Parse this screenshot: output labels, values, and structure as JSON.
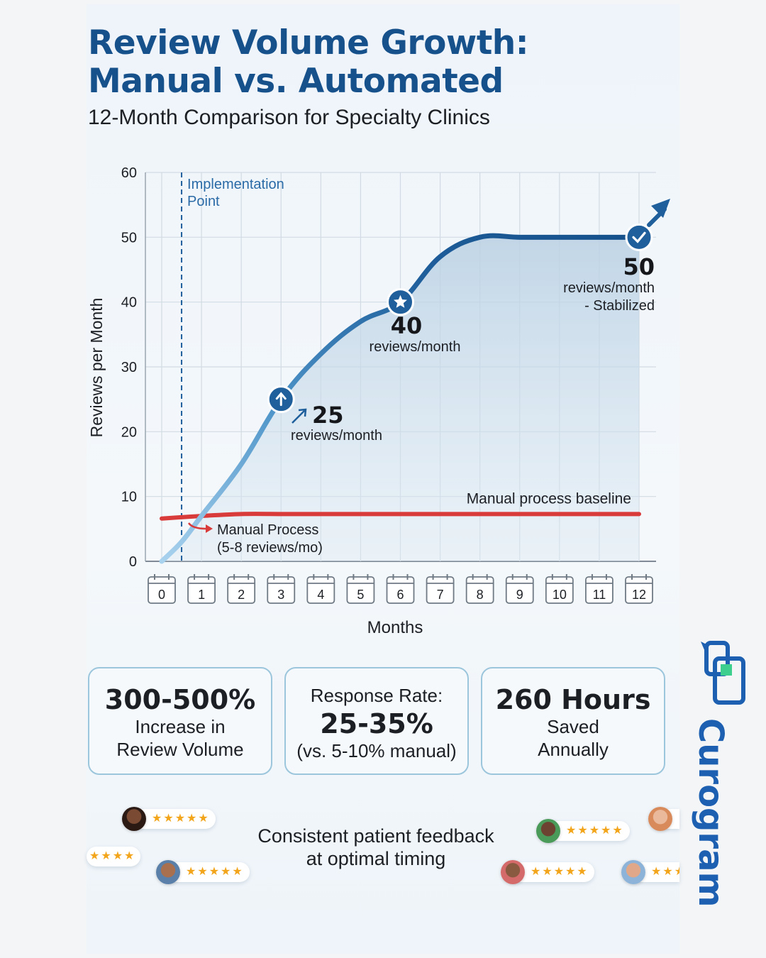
{
  "title_line1": "Review Volume Growth:",
  "title_line2": "Manual vs. Automated",
  "subtitle": "12-Month Comparison for Specialty Clinics",
  "chart_data": {
    "type": "line",
    "xlabel": "Months",
    "ylabel": "Reviews per Month",
    "xlim": [
      0,
      12
    ],
    "ylim": [
      0,
      60
    ],
    "x_ticks": [
      "0",
      "1",
      "2",
      "3",
      "4",
      "5",
      "6",
      "7",
      "8",
      "9",
      "10",
      "11",
      "12"
    ],
    "y_ticks": [
      "0",
      "10",
      "20",
      "30",
      "40",
      "50",
      "60"
    ],
    "grid": true,
    "series": [
      {
        "name": "Automated",
        "color": "#1f5f9c",
        "x": [
          0,
          0.5,
          1,
          2,
          3,
          4,
          5,
          6,
          7,
          8,
          9,
          10,
          11,
          12
        ],
        "y": [
          0,
          3,
          7,
          15,
          25,
          32,
          37,
          40,
          47,
          50,
          50,
          50,
          50,
          50
        ]
      },
      {
        "name": "Manual process baseline",
        "color": "#d93a3a",
        "x": [
          0,
          1,
          2,
          3,
          4,
          5,
          6,
          7,
          8,
          9,
          10,
          11,
          12
        ],
        "y": [
          6.6,
          7.0,
          7.3,
          7.3,
          7.3,
          7.3,
          7.3,
          7.3,
          7.3,
          7.3,
          7.3,
          7.3,
          7.3
        ]
      }
    ],
    "implementation_point": {
      "x": 0.5,
      "label_line1": "Implementation",
      "label_line2": "Point"
    },
    "markers": [
      {
        "x": 3,
        "y": 25,
        "icon": "arrow-up-icon",
        "value": "25",
        "unit": "reviews/month",
        "unit2": ""
      },
      {
        "x": 6,
        "y": 40,
        "icon": "star-icon",
        "value": "40",
        "unit": "reviews/month",
        "unit2": ""
      },
      {
        "x": 12,
        "y": 50,
        "icon": "check-icon",
        "value": "50",
        "unit": "reviews/month",
        "unit2": "- Stabilized"
      }
    ],
    "manual_annotation": {
      "line1": "Manual Process",
      "line2": "(5-8 reviews/mo)"
    }
  },
  "stats": [
    {
      "big": "300-500%",
      "line1": "Increase in",
      "line2": "Review Volume"
    },
    {
      "pre": "Response Rate:",
      "big": "25-35%",
      "post": "(vs. 5-10% manual)"
    },
    {
      "big": "260 Hours",
      "line1": "Saved",
      "line2": "Annually"
    }
  ],
  "feedback": {
    "line1": "Consistent patient feedback",
    "line2": "at optimal timing"
  },
  "brand": "Curogram",
  "colors": {
    "primary": "#17518b",
    "accent": "#1f5f9c",
    "manual": "#d93a3a",
    "star": "#f2a51a",
    "brand": "#1d5fb0"
  }
}
